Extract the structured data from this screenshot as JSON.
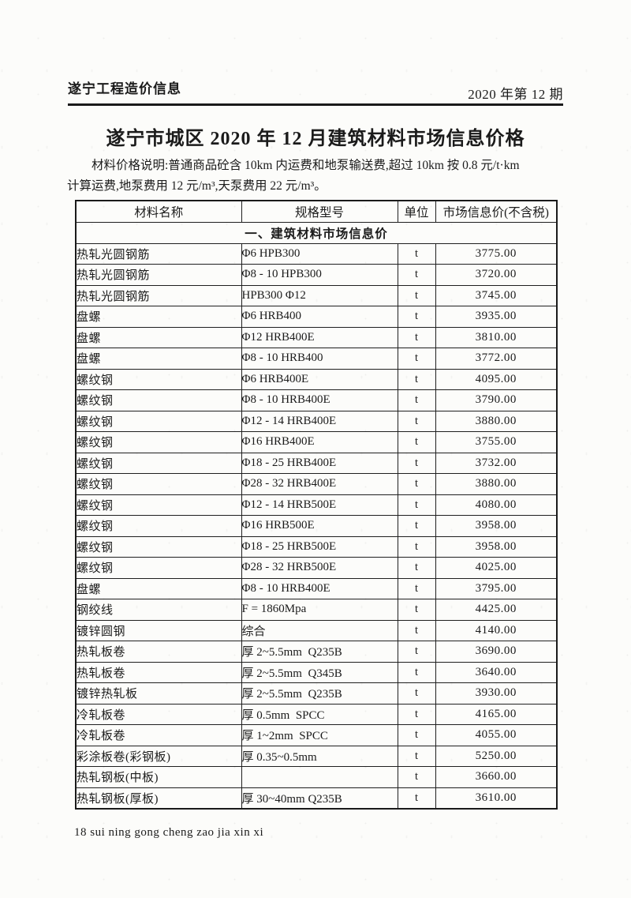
{
  "page": {
    "header": {
      "left": "遂宁工程造价信息",
      "right": "2020 年第 12 期"
    },
    "title": "遂宁市城区 2020 年 12 月建筑材料市场信息价格",
    "note_line1": "材料价格说明:普通商品砼含 10km 内运费和地泵输送费,超过 10km 按 0.8 元/t·km",
    "note_line2": "计算运费,地泵费用 12 元/m³,天泵费用 22 元/m³。",
    "footer": "18 sui ning gong cheng zao jia xin xi"
  },
  "table": {
    "columns": [
      "材料名称",
      "规格型号",
      "单位",
      "市场信息价(不含税)"
    ],
    "section": "一、建筑材料市场信息价",
    "rows": [
      [
        "热轧光圆钢筋",
        "Φ6 HPB300",
        "t",
        "3775.00"
      ],
      [
        "热轧光圆钢筋",
        "Φ8 - 10 HPB300",
        "t",
        "3720.00"
      ],
      [
        "热轧光圆钢筋",
        "HPB300 Φ12",
        "t",
        "3745.00"
      ],
      [
        "盘螺",
        "Φ6 HRB400",
        "t",
        "3935.00"
      ],
      [
        "盘螺",
        "Φ12 HRB400E",
        "t",
        "3810.00"
      ],
      [
        "盘螺",
        "Φ8 - 10 HRB400",
        "t",
        "3772.00"
      ],
      [
        "螺纹钢",
        "Φ6 HRB400E",
        "t",
        "4095.00"
      ],
      [
        "螺纹钢",
        "Φ8 - 10 HRB400E",
        "t",
        "3790.00"
      ],
      [
        "螺纹钢",
        "Φ12 - 14 HRB400E",
        "t",
        "3880.00"
      ],
      [
        "螺纹钢",
        "Φ16 HRB400E",
        "t",
        "3755.00"
      ],
      [
        "螺纹钢",
        "Φ18 - 25 HRB400E",
        "t",
        "3732.00"
      ],
      [
        "螺纹钢",
        "Φ28 - 32 HRB400E",
        "t",
        "3880.00"
      ],
      [
        "螺纹钢",
        "Φ12 - 14 HRB500E",
        "t",
        "4080.00"
      ],
      [
        "螺纹钢",
        "Φ16 HRB500E",
        "t",
        "3958.00"
      ],
      [
        "螺纹钢",
        "Φ18 - 25 HRB500E",
        "t",
        "3958.00"
      ],
      [
        "螺纹钢",
        "Φ28 - 32 HRB500E",
        "t",
        "4025.00"
      ],
      [
        "盘螺",
        "Φ8 - 10 HRB400E",
        "t",
        "3795.00"
      ],
      [
        "钢绞线",
        "F = 1860Mpa",
        "t",
        "4425.00"
      ],
      [
        "镀锌圆钢",
        "综合",
        "t",
        "4140.00"
      ],
      [
        "热轧板卷",
        "厚 2~5.5mm  Q235B",
        "t",
        "3690.00"
      ],
      [
        "热轧板卷",
        "厚 2~5.5mm  Q345B",
        "t",
        "3640.00"
      ],
      [
        "镀锌热轧板",
        "厚 2~5.5mm  Q235B",
        "t",
        "3930.00"
      ],
      [
        "冷轧板卷",
        "厚 0.5mm  SPCC",
        "t",
        "4165.00"
      ],
      [
        "冷轧板卷",
        "厚 1~2mm  SPCC",
        "t",
        "4055.00"
      ],
      [
        "彩涂板卷(彩钢板)",
        "厚 0.35~0.5mm",
        "t",
        "5250.00"
      ],
      [
        "热轧钢板(中板)",
        "",
        "t",
        "3660.00"
      ],
      [
        "热轧钢板(厚板)",
        "厚 30~40mm Q235B",
        "t",
        "3610.00"
      ]
    ]
  },
  "colors": {
    "paper": "#fcfcfa",
    "ink": "#1b1b1b",
    "border": "#1f1f1f"
  }
}
